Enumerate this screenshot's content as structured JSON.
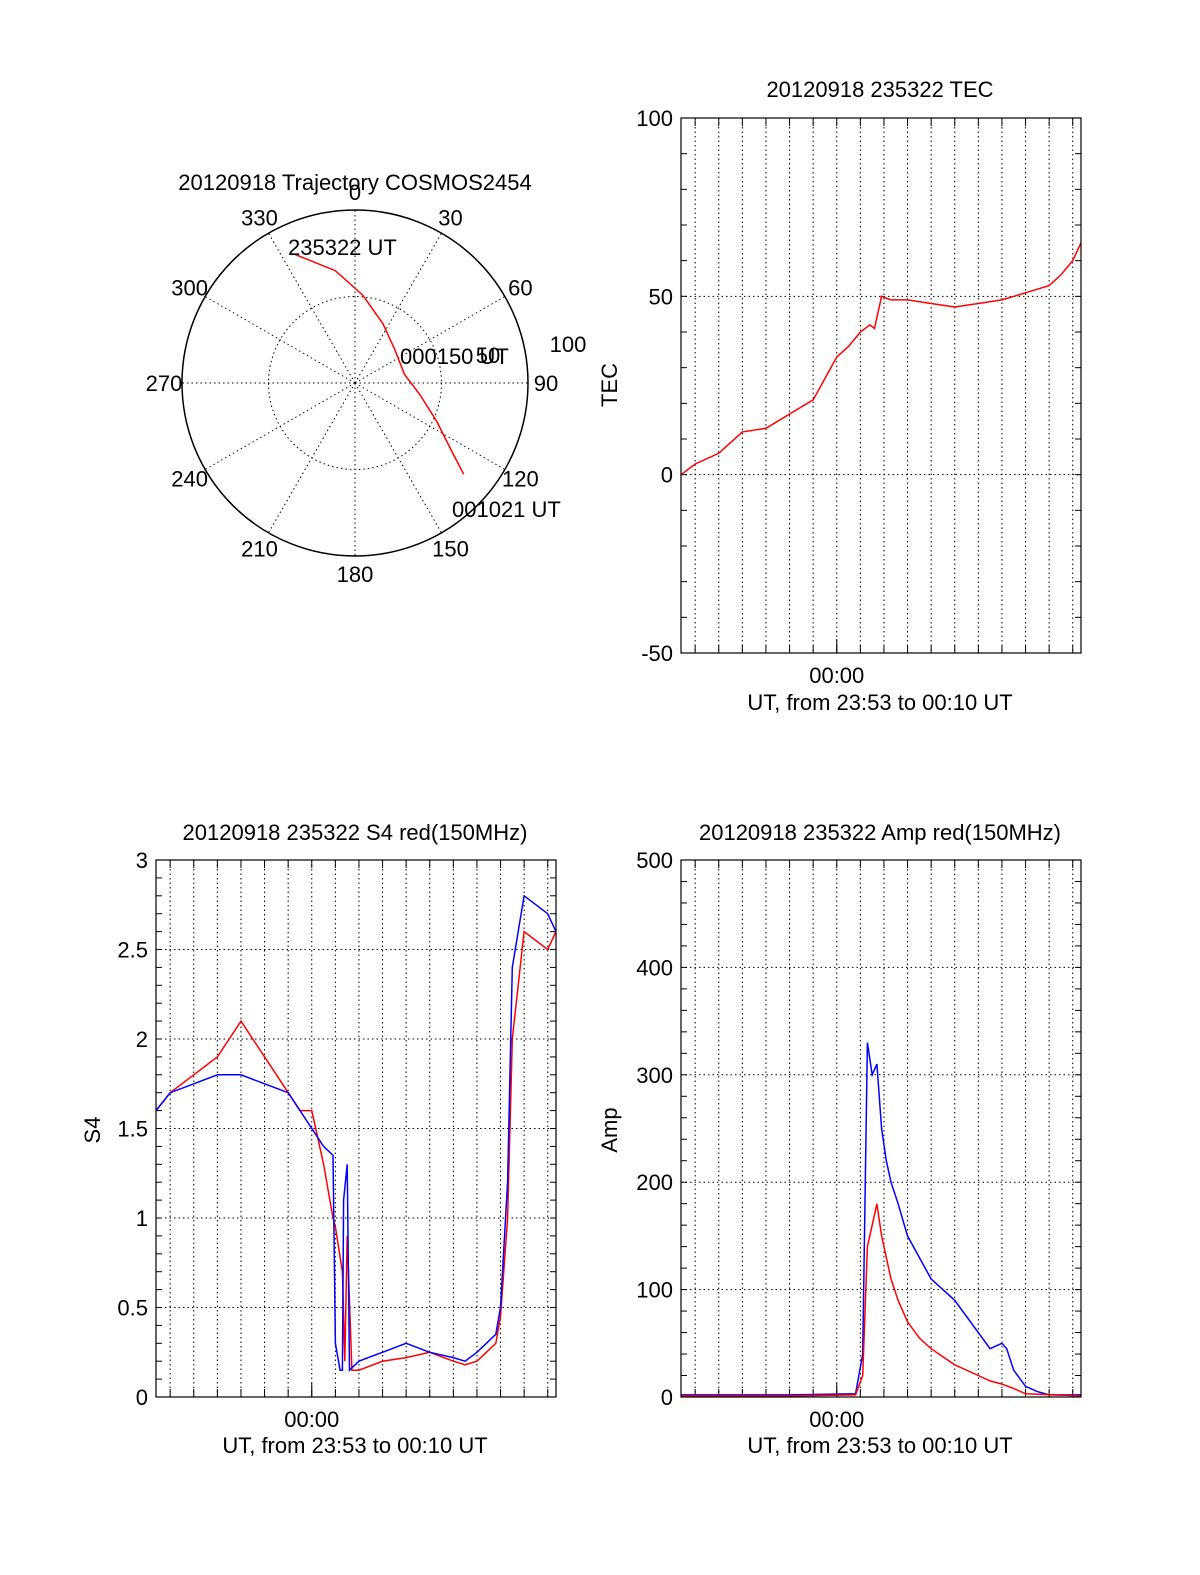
{
  "colors": {
    "series_red": "#ff0000",
    "series_blue": "#0000ff",
    "axis": "#000000",
    "grid": "#000000"
  },
  "chart_data": [
    {
      "id": "trajectory",
      "type": "polar",
      "title": "20120918 Trajectory COSMOS2454",
      "angle_labels": [
        "0",
        "30",
        "60",
        "90",
        "120",
        "150",
        "180",
        "210",
        "240",
        "270",
        "300",
        "330"
      ],
      "radial_tick_labels": [
        "50",
        "100"
      ],
      "radial_max": 100,
      "grid": true,
      "annotations": [
        "235322 UT",
        "000150 UT",
        "001021 UT"
      ],
      "series": [
        {
          "color": "red",
          "points": [
            {
              "az": 335,
              "el_dist": 82
            },
            {
              "az": 350,
              "el_dist": 66
            },
            {
              "az": 5,
              "el_dist": 51
            },
            {
              "az": 25,
              "el_dist": 38
            },
            {
              "az": 50,
              "el_dist": 30
            },
            {
              "az": 80,
              "el_dist": 29
            },
            {
              "az": 100,
              "el_dist": 38
            },
            {
              "az": 115,
              "el_dist": 52
            },
            {
              "az": 125,
              "el_dist": 68
            },
            {
              "az": 130,
              "el_dist": 82
            }
          ]
        }
      ]
    },
    {
      "id": "tec",
      "type": "line",
      "title": "20120918 235322 TEC",
      "xlabel": "UT, from 23:53 to 00:10 UT",
      "ylabel": "TEC",
      "xlim": [
        -6.6,
        10.35
      ],
      "ylim": [
        -50,
        100
      ],
      "yticks": [
        "-50",
        "0",
        "50",
        "100"
      ],
      "xticks": [
        {
          "value": 0,
          "label": "00:00"
        }
      ],
      "grid": true,
      "series": [
        {
          "color": "red",
          "x": [
            -6.6,
            -6.0,
            -5.0,
            -4.5,
            -4.0,
            -3.0,
            -2.5,
            -2.0,
            -1.0,
            0,
            0.5,
            1.0,
            1.4,
            1.6,
            1.9,
            2.3,
            3.0,
            4.0,
            5.0,
            6.0,
            7.0,
            8.0,
            8.5,
            9.0,
            9.5,
            10.0,
            10.35
          ],
          "y": [
            0,
            3,
            6,
            9,
            12,
            13,
            15,
            17,
            21,
            33,
            36,
            40,
            42,
            41,
            50,
            49,
            49,
            48,
            47,
            48,
            49,
            51,
            52,
            53,
            56,
            60,
            65
          ]
        }
      ]
    },
    {
      "id": "s4",
      "type": "line",
      "title": "20120918 235322 S4 red(150MHz)",
      "xlabel": "UT, from 23:53 to 00:10 UT",
      "ylabel": "S4",
      "xlim": [
        -6.6,
        10.35
      ],
      "ylim": [
        0,
        3
      ],
      "yticks": [
        "0",
        "0.5",
        "1",
        "1.5",
        "2",
        "2.5",
        "3"
      ],
      "xticks": [
        {
          "value": 0,
          "label": "00:00"
        }
      ],
      "grid": true,
      "series": [
        {
          "color": "red",
          "x": [
            -6.6,
            -6.0,
            -5.0,
            -4.0,
            -3.0,
            -2.0,
            -1.0,
            -0.5,
            0,
            0.5,
            0.9,
            1.0,
            1.3,
            1.4,
            1.5,
            1.7,
            2.0,
            3.0,
            4.0,
            5.0,
            6.0,
            6.5,
            7.0,
            7.4,
            7.8,
            8.0,
            8.3,
            8.5,
            9.0,
            10.0,
            10.35
          ],
          "y": [
            1.6,
            1.7,
            1.8,
            1.9,
            2.1,
            1.9,
            1.7,
            1.6,
            1.6,
            1.3,
            1.0,
            0.95,
            0.7,
            0.2,
            0.9,
            0.15,
            0.15,
            0.2,
            0.22,
            0.25,
            0.2,
            0.18,
            0.2,
            0.25,
            0.3,
            0.45,
            1.0,
            2.0,
            2.6,
            2.5,
            2.6
          ]
        },
        {
          "color": "blue",
          "x": [
            -6.6,
            -6.0,
            -5.0,
            -4.0,
            -3.0,
            -2.0,
            -1.0,
            -0.5,
            0,
            0.5,
            0.9,
            1.0,
            1.2,
            1.3,
            1.35,
            1.5,
            1.6,
            2.0,
            3.0,
            4.0,
            5.0,
            6.0,
            6.5,
            7.0,
            7.4,
            7.8,
            8.0,
            8.3,
            8.5,
            9.0,
            10.0,
            10.35
          ],
          "y": [
            1.6,
            1.7,
            1.75,
            1.8,
            1.8,
            1.75,
            1.7,
            1.6,
            1.5,
            1.4,
            1.35,
            0.3,
            0.15,
            0.15,
            1.1,
            1.3,
            0.15,
            0.2,
            0.25,
            0.3,
            0.25,
            0.22,
            0.2,
            0.25,
            0.3,
            0.35,
            0.5,
            1.2,
            2.4,
            2.8,
            2.7,
            2.6
          ]
        }
      ]
    },
    {
      "id": "amp",
      "type": "line",
      "title": "20120918 235322 Amp red(150MHz)",
      "xlabel": "UT, from 23:53 to 00:10 UT",
      "ylabel": "Amp",
      "xlim": [
        -6.6,
        10.35
      ],
      "ylim": [
        0,
        500
      ],
      "yticks": [
        "0",
        "100",
        "200",
        "300",
        "400",
        "500"
      ],
      "xticks": [
        {
          "value": 0,
          "label": "00:00"
        }
      ],
      "grid": true,
      "series": [
        {
          "color": "blue",
          "x": [
            -6.6,
            -2.0,
            0.8,
            1.1,
            1.3,
            1.5,
            1.7,
            1.9,
            2.1,
            2.3,
            2.6,
            3.0,
            3.5,
            4.0,
            5.0,
            6.0,
            6.5,
            7.0,
            7.2,
            7.5,
            8.0,
            8.5,
            9.0,
            10.35
          ],
          "y": [
            2,
            2,
            3,
            40,
            330,
            300,
            310,
            250,
            220,
            200,
            180,
            150,
            130,
            110,
            90,
            60,
            45,
            50,
            45,
            25,
            10,
            5,
            2,
            2
          ]
        },
        {
          "color": "red",
          "x": [
            -6.6,
            -2.0,
            0.8,
            1.1,
            1.3,
            1.5,
            1.7,
            1.9,
            2.1,
            2.3,
            2.6,
            3.0,
            3.5,
            4.0,
            5.0,
            6.0,
            6.5,
            7.0,
            7.5,
            8.0,
            10.35
          ],
          "y": [
            1,
            1,
            2,
            20,
            140,
            160,
            180,
            150,
            130,
            110,
            90,
            70,
            55,
            45,
            30,
            20,
            15,
            12,
            8,
            3,
            1
          ]
        }
      ]
    }
  ]
}
